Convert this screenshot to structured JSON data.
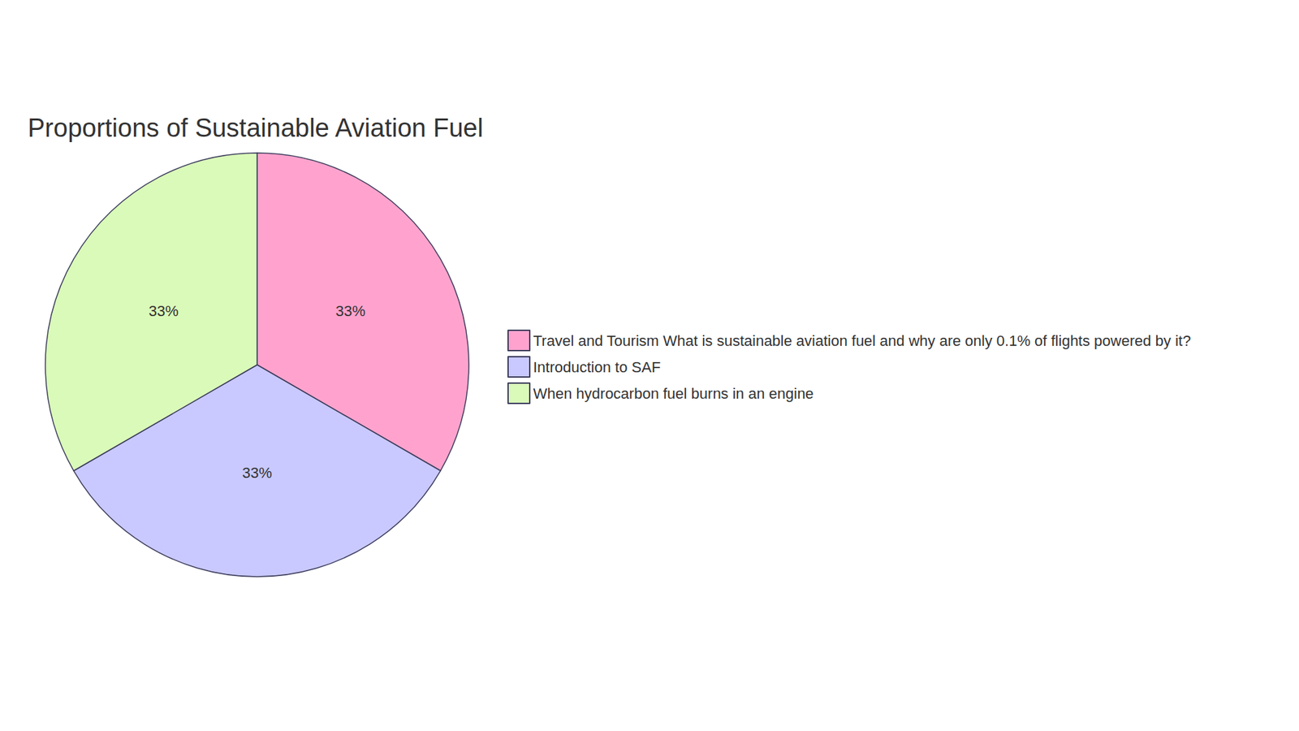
{
  "chart_data": {
    "type": "pie",
    "title": "Proportions of Sustainable Aviation Fuel",
    "categories": [
      "Travel and Tourism What is sustainable aviation fuel and why are only 0.1% of flights powered by it?",
      "Introduction to SAF",
      "When hydrocarbon fuel burns in an engine"
    ],
    "values": [
      33,
      33,
      33
    ],
    "value_labels": [
      "33%",
      "33%",
      "33%"
    ],
    "colors": [
      "#ffa3ce",
      "#c9c9ff",
      "#dafab9"
    ],
    "data_labels": true,
    "legend": "right"
  }
}
